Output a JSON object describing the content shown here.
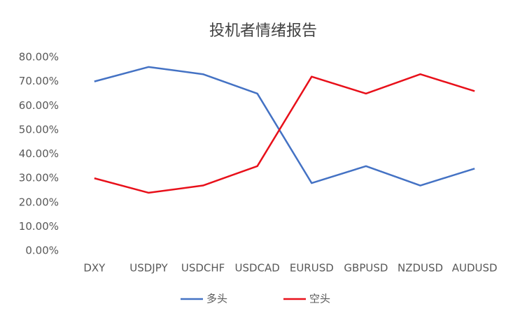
{
  "chart_data": {
    "type": "line",
    "title": "投机者情绪报告",
    "categories": [
      "DXY",
      "USDJPY",
      "USDCHF",
      "USDCAD",
      "EURUSD",
      "GBPUSD",
      "NZDUSD",
      "AUDUSD"
    ],
    "series": [
      {
        "name": "多头",
        "color": "#4472c4",
        "values": [
          70,
          76,
          73,
          65,
          28,
          35,
          27,
          34
        ]
      },
      {
        "name": "空头",
        "color": "#e8101a",
        "values": [
          30,
          24,
          27,
          35,
          72,
          65,
          73,
          66
        ]
      }
    ],
    "ylim": [
      0,
      80
    ],
    "yticks": [
      {
        "value": 0,
        "label": "0.00%"
      },
      {
        "value": 10,
        "label": "10.00%"
      },
      {
        "value": 20,
        "label": "20.00%"
      },
      {
        "value": 30,
        "label": "30.00%"
      },
      {
        "value": 40,
        "label": "40.00%"
      },
      {
        "value": 50,
        "label": "50.00%"
      },
      {
        "value": 60,
        "label": "60.00%"
      },
      {
        "value": 70,
        "label": "70.00%"
      },
      {
        "value": 80,
        "label": "80.00%"
      }
    ],
    "grid": false,
    "legend": "bottom"
  }
}
